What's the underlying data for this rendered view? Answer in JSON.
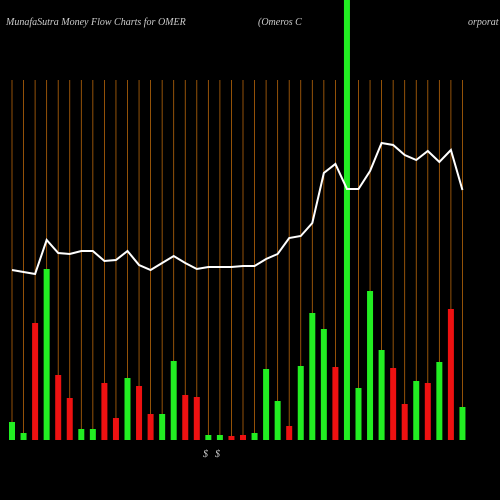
{
  "chart_data": {
    "type": "bar-line",
    "title": "MunafaSutra  Money Flow  Charts for OMER",
    "subtitle": "(Omeros C",
    "subtitle_tail": "orporat",
    "annotations": [
      "$",
      "$"
    ],
    "ylim": [
      0,
      440
    ],
    "up_color": "#22ee22",
    "down_color": "#ee1111",
    "line_color": "#ffffff",
    "grid_color": "#b8660b",
    "bars": {
      "values": [
        18,
        7,
        117,
        171,
        65,
        42,
        11,
        11,
        57,
        22,
        62,
        54,
        26,
        26,
        79,
        45,
        43,
        5,
        5,
        4,
        5,
        7,
        71,
        39,
        14,
        74,
        127,
        111,
        73,
        440,
        52,
        149,
        90,
        72,
        36,
        59,
        57,
        78,
        131,
        33
      ],
      "directions": [
        "up",
        "up",
        "down",
        "up",
        "down",
        "down",
        "up",
        "up",
        "down",
        "down",
        "up",
        "down",
        "down",
        "up",
        "up",
        "down",
        "down",
        "up",
        "up",
        "down",
        "down",
        "up",
        "up",
        "up",
        "down",
        "up",
        "up",
        "up",
        "down",
        "up",
        "up",
        "up",
        "up",
        "down",
        "down",
        "up",
        "down",
        "up",
        "down",
        "up"
      ]
    },
    "line": {
      "values": [
        170,
        168,
        166,
        200,
        187,
        186,
        189,
        189,
        179,
        180,
        189,
        175,
        170,
        177,
        184,
        177,
        171,
        173,
        173,
        173,
        174,
        174,
        181,
        186,
        202,
        204,
        217,
        267,
        276,
        251,
        251,
        269,
        297,
        295,
        285,
        280,
        289,
        278,
        290,
        250
      ]
    }
  }
}
